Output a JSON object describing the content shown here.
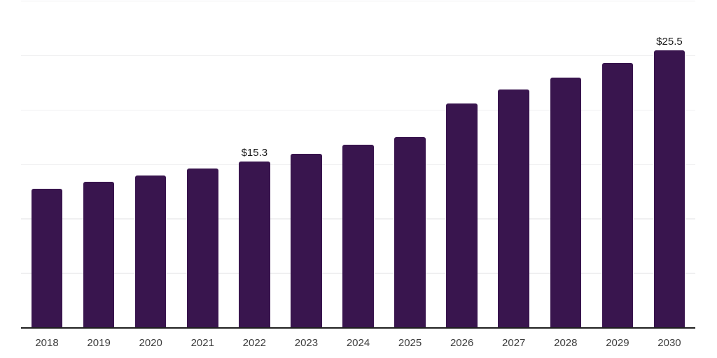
{
  "chart_data": {
    "type": "bar",
    "title": "",
    "xlabel": "",
    "ylabel": "",
    "categories": [
      "2018",
      "2019",
      "2020",
      "2021",
      "2022",
      "2023",
      "2024",
      "2025",
      "2026",
      "2027",
      "2028",
      "2029",
      "2030"
    ],
    "values": [
      12.8,
      13.4,
      14.0,
      14.6,
      15.3,
      16.0,
      16.8,
      17.5,
      20.6,
      21.9,
      23.0,
      24.3,
      25.5
    ],
    "annotations": [
      {
        "category": "2022",
        "text": "$15.3"
      },
      {
        "category": "2030",
        "text": "$25.5"
      }
    ],
    "ylim": [
      0,
      30
    ],
    "grid_step": 5,
    "grid": "horizontal-only",
    "y_tick_labels_visible": false,
    "legend": "none",
    "colors": {
      "bar": "#39154E",
      "grid_line": "#f0f0f1",
      "axis_line": "#1f1f1f",
      "tick_label": "#3d3d3d",
      "value_label": "#1a1a1a",
      "background": "#ffffff"
    }
  }
}
